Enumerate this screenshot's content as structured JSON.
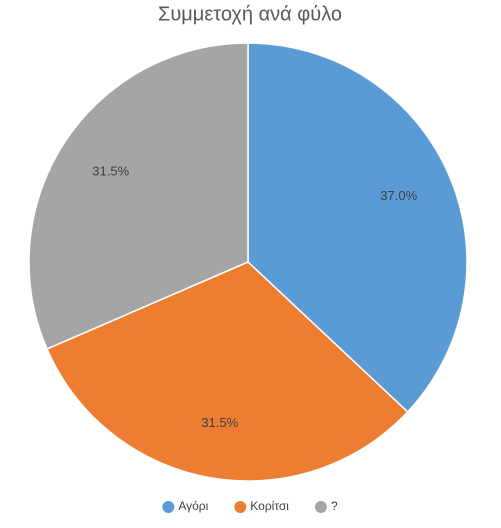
{
  "chart_data": {
    "type": "pie",
    "title": "Συμμετοχή ανά φύλο",
    "categories": [
      "Αγόρι",
      "Κορίτσι",
      "?"
    ],
    "values": [
      37.0,
      31.5,
      31.5
    ],
    "value_labels": [
      "37.0%",
      "31.5%",
      "31.5%"
    ],
    "colors": [
      "#5b9bd5",
      "#ed7d31",
      "#a5a5a5"
    ]
  }
}
